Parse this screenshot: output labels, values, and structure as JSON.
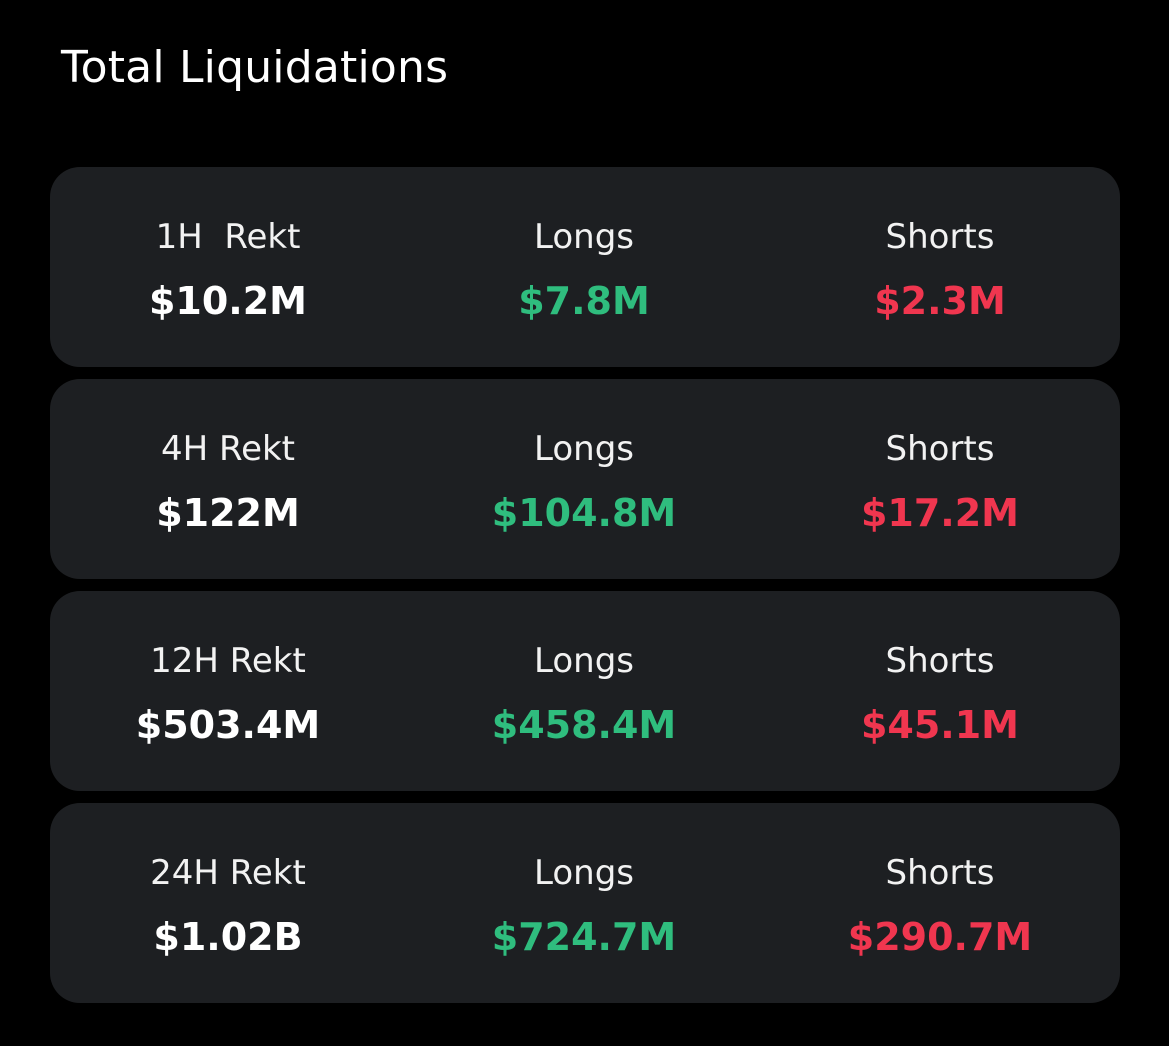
{
  "title": "Total Liquidations",
  "colors": {
    "background": "#000000",
    "card": "#1d1f22",
    "longs": "#2fbd7e",
    "shorts": "#f0364f",
    "total": "#ffffff"
  },
  "periods": [
    {
      "total_label": "1H  Rekt",
      "total_value": "$10.2M",
      "longs_label": "Longs",
      "longs_value": "$7.8M",
      "shorts_label": "Shorts",
      "shorts_value": "$2.3M"
    },
    {
      "total_label": "4H Rekt",
      "total_value": "$122M",
      "longs_label": "Longs",
      "longs_value": "$104.8M",
      "shorts_label": "Shorts",
      "shorts_value": "$17.2M"
    },
    {
      "total_label": "12H Rekt",
      "total_value": "$503.4M",
      "longs_label": "Longs",
      "longs_value": "$458.4M",
      "shorts_label": "Shorts",
      "shorts_value": "$45.1M"
    },
    {
      "total_label": "24H Rekt",
      "total_value": "$1.02B",
      "longs_label": "Longs",
      "longs_value": "$724.7M",
      "shorts_label": "Shorts",
      "shorts_value": "$290.7M"
    }
  ]
}
